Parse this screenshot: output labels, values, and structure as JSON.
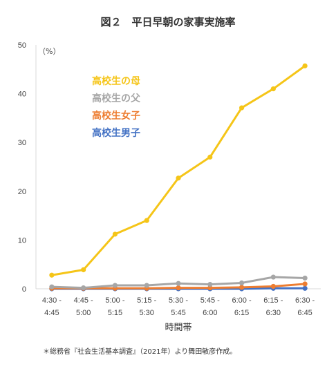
{
  "chart_data": {
    "type": "line",
    "title": "図２　平日早朝の家事実施率",
    "unit_label": "（%）",
    "xlabel": "時間帯",
    "ylabel": "",
    "ylim": [
      0,
      50
    ],
    "yticks": [
      "0",
      "10",
      "20",
      "30",
      "40",
      "50"
    ],
    "categories": [
      [
        "4:30 -",
        "4:45"
      ],
      [
        "4:45 -",
        "5:00"
      ],
      [
        "5:00 -",
        "5:15"
      ],
      [
        "5:15 -",
        "5:30"
      ],
      [
        "5:30 -",
        "5:45"
      ],
      [
        "5:45 -",
        "6:00"
      ],
      [
        "6:00 -",
        "6:15"
      ],
      [
        "6:15 -",
        "6:30"
      ],
      [
        "6:30 -",
        "6:45"
      ]
    ],
    "series": [
      {
        "name": "高校生の母",
        "color": "#f5c518",
        "values": [
          2.8,
          3.9,
          11.2,
          14.0,
          22.7,
          27.0,
          37.1,
          41.0,
          45.7
        ]
      },
      {
        "name": "高校生の父",
        "color": "#a6a6a6",
        "values": [
          0.4,
          0.2,
          0.7,
          0.7,
          1.1,
          0.9,
          1.2,
          2.4,
          2.2
        ]
      },
      {
        "name": "高校生女子",
        "color": "#ed7d31",
        "values": [
          0.1,
          0.1,
          0.1,
          0.1,
          0.2,
          0.2,
          0.3,
          0.5,
          1.0
        ]
      },
      {
        "name": "高校生男子",
        "color": "#4472c4",
        "values": [
          0.0,
          0.0,
          0.0,
          0.0,
          0.0,
          0.0,
          0.0,
          0.1,
          0.1
        ]
      }
    ],
    "grid": false,
    "legend_position": "top-left"
  },
  "source_note": "＊総務省『社会生活基本調査』（2021年）より舞田敏彦作成。"
}
